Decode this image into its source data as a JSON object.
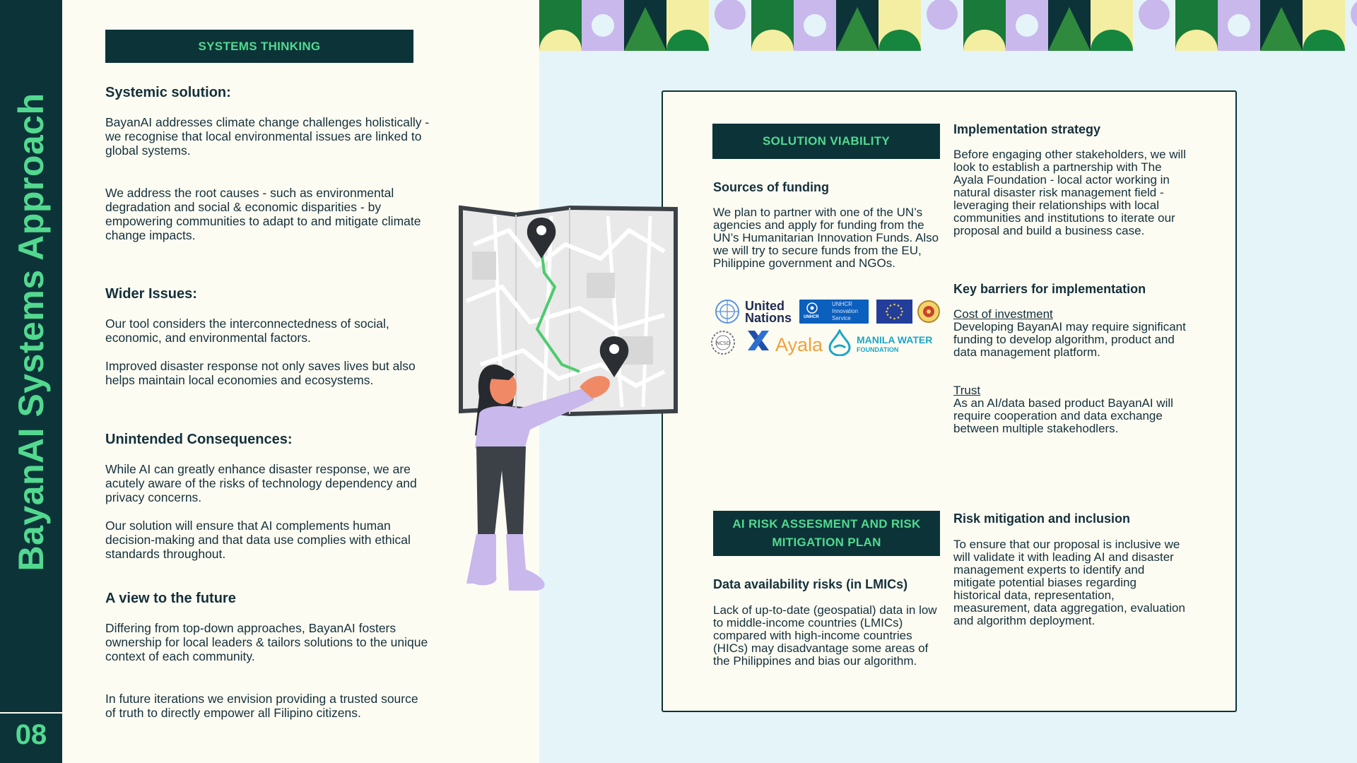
{
  "sidebar": {
    "title": "BayanAI Systems Approach",
    "page_number": "08"
  },
  "systems_thinking": {
    "label": "SYSTEMS THINKING",
    "sections": [
      {
        "heading": "Systemic solution:",
        "paragraphs": [
          "BayanAI addresses climate change challenges holistically - we recognise that local environmental issues are linked to global systems.",
          "We address the root causes - such as environmental degradation and social & economic disparities - by empowering communities to adapt to and mitigate climate change impacts."
        ]
      },
      {
        "heading": "Wider Issues:",
        "paragraphs": [
          "Our tool considers the interconnectedness of social, economic, and environmental factors.",
          "Improved disaster response not only saves lives but also helps maintain local economies and ecosystems."
        ]
      },
      {
        "heading": "Unintended Consequences:",
        "paragraphs": [
          "While AI can greatly enhance disaster response, we are acutely aware of the risks of technology dependency and privacy concerns.",
          "Our solution will ensure that AI complements human decision-making and that data use complies with ethical standards throughout."
        ]
      },
      {
        "heading": "A view to the future",
        "paragraphs": [
          "Differing from top-down approaches, BayanAI fosters  ownership for local leaders & tailors solutions to the unique context of each community.",
          "In future iterations we envision providing a trusted source of truth to directly empower all Filipino citizens."
        ]
      }
    ]
  },
  "viability": {
    "label": "SOLUTION VIABILITY",
    "funding_heading": "Sources of funding",
    "funding_text": "We plan to partner with one of the UN’s agencies and apply for funding from the UN’s Humanitarian Innovation Funds. Also we will try to secure funds from the EU, Philippine government and NGOs.",
    "logos": {
      "un_line1": "United",
      "un_line2": "Nations",
      "unhcr_line1": "UNHCR",
      "unhcr_line2": "Innovation",
      "unhcr_line3": "Service",
      "unhcr_badge": "UNHCR",
      "ayala": "Ayala",
      "manila_water": "MANILA WATER",
      "manila_foundation": "FOUNDATION",
      "ncsd": "NCSD"
    },
    "impl_heading": "Implementation strategy",
    "impl_text": "Before engaging other stakeholders, we will look to establish a partnership with The Ayala Foundation - local actor working in natural disaster risk management field - leveraging their relationships with local communities and institutions to iterate our proposal and build a business case.",
    "barriers_heading": "Key barriers for implementation",
    "barrier1_title": "Cost of investment",
    "barrier1_text": "Developing BayanAI may require significant funding to develop algorithm, product and data management platform.",
    "barrier2_title": "Trust",
    "barrier2_text": "As an AI/data based product BayanAI will require cooperation and data exchange between multiple stakehodlers."
  },
  "risk": {
    "label_line1": "AI RISK ASSESMENT AND RISK",
    "label_line2": "MITIGATION PLAN",
    "data_heading": "Data availability risks (in LMICs)",
    "data_text": "Lack of up-to-date (geospatial) data in low to middle-income countries (LMICs) compared with high-income countries (HICs) may disadvantage some areas of the Philippines and bias our algorithm.",
    "mitigation_heading": "Risk mitigation and inclusion",
    "mitigation_text": "To ensure that our proposal is inclusive we will validate it with leading AI and disaster management experts to identify and mitigate potential biases regarding historical data, representation, measurement, data aggregation, evaluation and algorithm deployment."
  },
  "colors": {
    "dark_teal": "#0c3438",
    "accent_green": "#52d98f",
    "cream": "#fdfcf3",
    "light_blue": "#e4f4f9"
  }
}
